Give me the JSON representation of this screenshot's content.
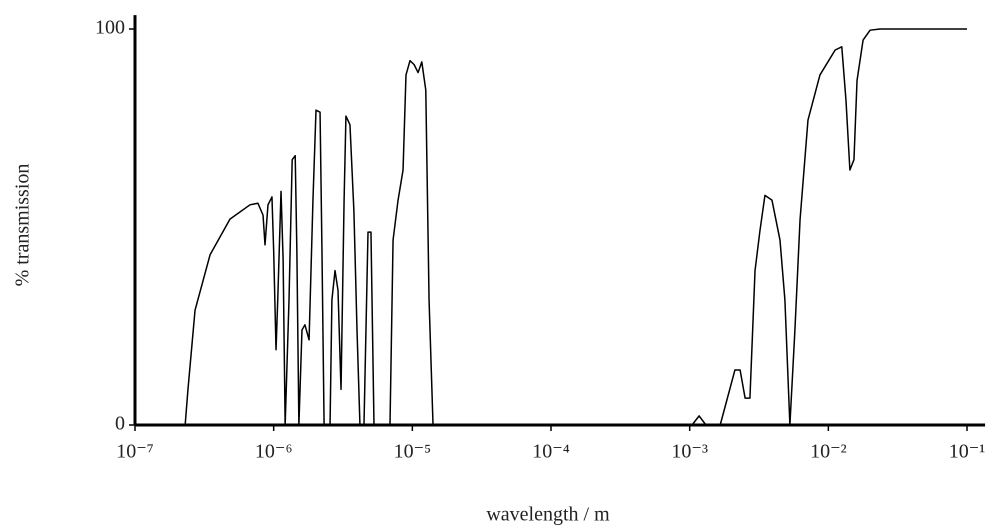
{
  "chart_data": {
    "type": "line",
    "xlabel": "wavelength / m",
    "ylabel": "% transmission",
    "xscale": "log",
    "xlim": [
      1e-07,
      0.135
    ],
    "ylim": [
      0,
      103.5
    ],
    "xticks": [
      {
        "value": 1e-07,
        "label": "10⁻⁷"
      },
      {
        "value": 1e-06,
        "label": "10⁻⁶"
      },
      {
        "value": 1e-05,
        "label": "10⁻⁵"
      },
      {
        "value": 0.0001,
        "label": "10⁻⁴"
      },
      {
        "value": 0.001,
        "label": "10⁻³"
      },
      {
        "value": 0.01,
        "label": "10⁻²"
      },
      {
        "value": 0.1,
        "label": "10⁻¹"
      }
    ],
    "yticks": [
      0,
      100
    ],
    "x": [
      2.3e-07,
      2.41e-07,
      2.71e-07,
      3.48e-07,
      4.84e-07,
      6.75e-07,
      7.7e-07,
      8.38e-07,
      8.66e-07,
      9.1e-07,
      9.72e-07,
      1e-06,
      1.04e-06,
      1.07e-06,
      1.13e-06,
      1.17e-06,
      1.21e-06,
      1.29e-06,
      1.36e-06,
      1.43e-06,
      1.47e-06,
      1.52e-06,
      1.6e-06,
      1.68e-06,
      1.8e-06,
      1.92e-06,
      2.02e-06,
      2.16e-06,
      2.23e-06,
      2.31e-06,
      2.55e-06,
      2.63e-06,
      2.77e-06,
      2.91e-06,
      3.06e-06,
      3.22e-06,
      3.32e-06,
      3.55e-06,
      3.79e-06,
      3.99e-06,
      4.19e-06,
      4.48e-06,
      4.79e-06,
      5.03e-06,
      5.29e-06,
      6.9e-06,
      7.26e-06,
      7.89e-06,
      8.57e-06,
      9e-06,
      9.62e-06,
      1.03e-05,
      1.1e-05,
      1.17e-05,
      1.25e-05,
      1.32e-05,
      1.41e-05,
      0.00104,
      0.00117,
      0.00131,
      0.00166,
      0.00212,
      0.00231,
      0.00251,
      0.00272,
      0.00296,
      0.00321,
      0.00349,
      0.00392,
      0.00448,
      0.00486,
      0.00528,
      0.00574,
      0.00625,
      0.00713,
      0.0087,
      0.0112,
      0.0125,
      0.0134,
      0.0143,
      0.0153,
      0.0161,
      0.0178,
      0.02,
      0.0236,
      0.1
    ],
    "series": [
      {
        "color": "#000000",
        "values": [
          0,
          9,
          29,
          43,
          52,
          55.6,
          56,
          53,
          45.5,
          55.6,
          57.6,
          44,
          19,
          31.6,
          59,
          41.7,
          0,
          31.6,
          67,
          68,
          44,
          0,
          24,
          25.3,
          21.5,
          56.8,
          79.5,
          79,
          44,
          0,
          0,
          31.6,
          39,
          34,
          9,
          56.8,
          78,
          75.8,
          54,
          24,
          0,
          0,
          48.7,
          48.7,
          0,
          0,
          46.7,
          56.8,
          64.4,
          88.4,
          92,
          91,
          89,
          91.7,
          84.6,
          31.6,
          0,
          0,
          2.3,
          0,
          0,
          13.9,
          13.9,
          6.8,
          6.8,
          39,
          49,
          58,
          56.8,
          46.7,
          31.6,
          0,
          24,
          51.8,
          77,
          88.4,
          94.7,
          95.5,
          82,
          64.4,
          67,
          87,
          97.2,
          99.7,
          100,
          100
        ]
      }
    ]
  }
}
